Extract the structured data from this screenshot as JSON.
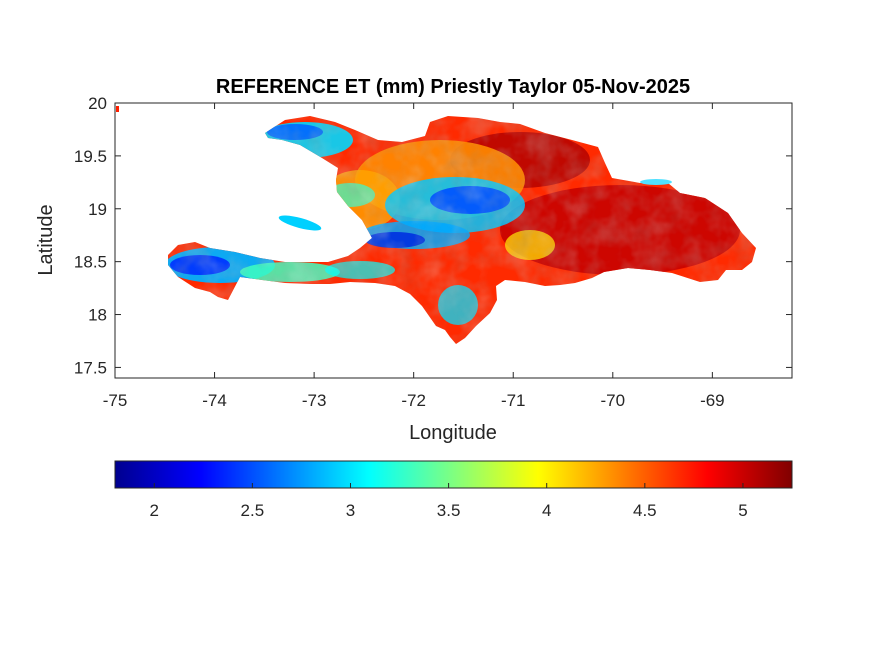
{
  "title": "REFERENCE ET (mm) Priestly Taylor 05-Nov-2025",
  "map": {
    "xlabel": "Longitude",
    "ylabel": "Latitude",
    "xlim": [
      -75,
      -68.2
    ],
    "ylim": [
      17.4,
      20
    ],
    "xticks": [
      -75,
      -74,
      -73,
      -72,
      -71,
      -70,
      -69
    ],
    "yticks": [
      17.5,
      18,
      18.5,
      19,
      19.5,
      20
    ],
    "xtick_labels": [
      "-75",
      "-74",
      "-73",
      "-72",
      "-71",
      "-70",
      "-69"
    ],
    "ytick_labels": [
      "17.5",
      "18",
      "18.5",
      "19",
      "19.5",
      "20"
    ],
    "grid": false,
    "region": "Hispaniola (Haiti and Dominican Republic)"
  },
  "colorbar": {
    "colormap": "jet",
    "range": [
      1.8,
      5.25
    ],
    "ticks": [
      2,
      2.5,
      3,
      3.5,
      4,
      4.5,
      5
    ],
    "tick_labels": [
      "2",
      "2.5",
      "3",
      "3.5",
      "4",
      "4.5",
      "5"
    ],
    "orientation": "horizontal",
    "placement": "bottom"
  },
  "colors": {
    "low": "#00008f",
    "mid_low": "#00ffff",
    "mid": "#ffff00",
    "high": "#ff0000",
    "max": "#800000"
  }
}
